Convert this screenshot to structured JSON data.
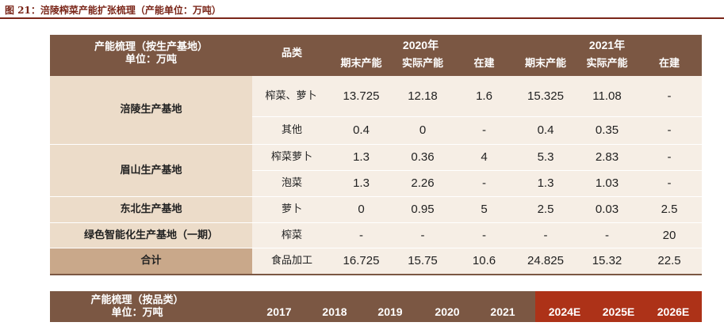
{
  "figure_title": "图 21：涪陵榨菜产能扩张梳理（产能单位：万吨）",
  "table1": {
    "header": {
      "col1_line1": "产能梳理（按生产基地）",
      "col1_line2": "单位：万吨",
      "category": "品类",
      "year_2020": "2020年",
      "year_2021": "2021年",
      "sub": [
        "期末产能",
        "实际产能",
        "在建",
        "期末产能",
        "实际产能",
        "在建"
      ]
    },
    "rows": [
      {
        "base": "涪陵生产基地",
        "category": "榨菜、萝卜",
        "values": [
          "13.725",
          "12.18",
          "1.6",
          "15.325",
          "11.08",
          "-"
        ]
      },
      {
        "base": "",
        "category": "其他",
        "values": [
          "0.4",
          "0",
          "-",
          "0.4",
          "0.35",
          "-"
        ]
      },
      {
        "base": "眉山生产基地",
        "category": "榨菜萝卜",
        "values": [
          "1.3",
          "0.36",
          "4",
          "5.3",
          "2.83",
          "-"
        ]
      },
      {
        "base": "",
        "category": "泡菜",
        "values": [
          "1.3",
          "2.26",
          "-",
          "1.3",
          "1.03",
          "-"
        ]
      },
      {
        "base": "东北生产基地",
        "category": "萝卜",
        "values": [
          "0",
          "0.95",
          "5",
          "2.5",
          "0.03",
          "2.5"
        ]
      },
      {
        "base": "绿色智能化生产基地（一期）",
        "category": "榨菜",
        "values": [
          "-",
          "-",
          "-",
          "-",
          "-",
          "20"
        ]
      }
    ],
    "total": {
      "label": "合计",
      "category": "食品加工",
      "values": [
        "16.725",
        "15.75",
        "10.6",
        "24.825",
        "15.32",
        "22.5"
      ]
    }
  },
  "table2": {
    "header_line1": "产能梳理（按品类）",
    "header_line2": "单位：万吨",
    "years": [
      "2017",
      "2018",
      "2019",
      "2020",
      "2021",
      "2024E",
      "2025E",
      "2026E"
    ]
  },
  "colors": {
    "header_bg": "#7b5743",
    "base_bg": "#ecdcc9",
    "row_bg": "#f6eee5",
    "total_bg": "#c9a88a",
    "forecast_bg": "#ad3218",
    "title_color": "#7a2518"
  }
}
